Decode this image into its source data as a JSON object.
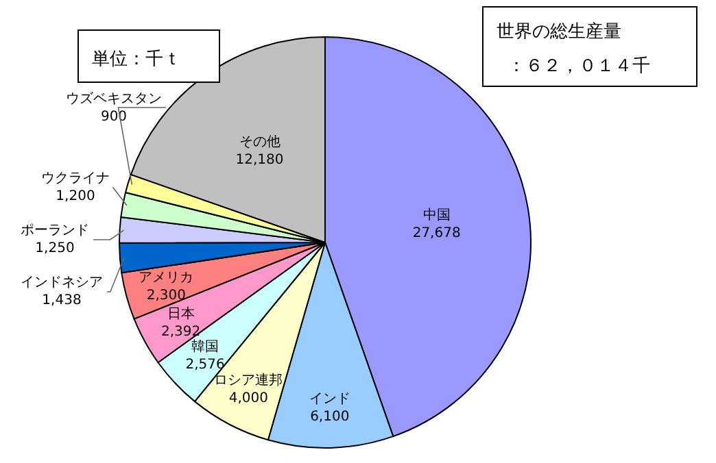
{
  "chart_data": {
    "type": "pie",
    "categories": [
      "中国",
      "インド",
      "ロシア連邦",
      "韓国",
      "日本",
      "アメリカ",
      "インドネシア",
      "ポーランド",
      "ウクライナ",
      "ウズベキスタン",
      "その他"
    ],
    "values": [
      27678,
      6100,
      4000,
      2576,
      2392,
      2300,
      1438,
      1250,
      1200,
      900,
      12180
    ],
    "value_labels": [
      "27,678",
      "6,100",
      "4,000",
      "2,576",
      "2,392",
      "2,300",
      "1,438",
      "1,250",
      "1,200",
      "900",
      "12,180"
    ],
    "colors": [
      "#9999ff",
      "#99ccff",
      "#ffffcc",
      "#ccffff",
      "#ff99cc",
      "#ff8080",
      "#0066cc",
      "#ccccff",
      "#ccffcc",
      "#ffff99",
      "#c0c0c0"
    ],
    "annotations": [
      "単位：千ｔ",
      "世界の総生産量",
      "：６２，０１４千"
    ]
  }
}
